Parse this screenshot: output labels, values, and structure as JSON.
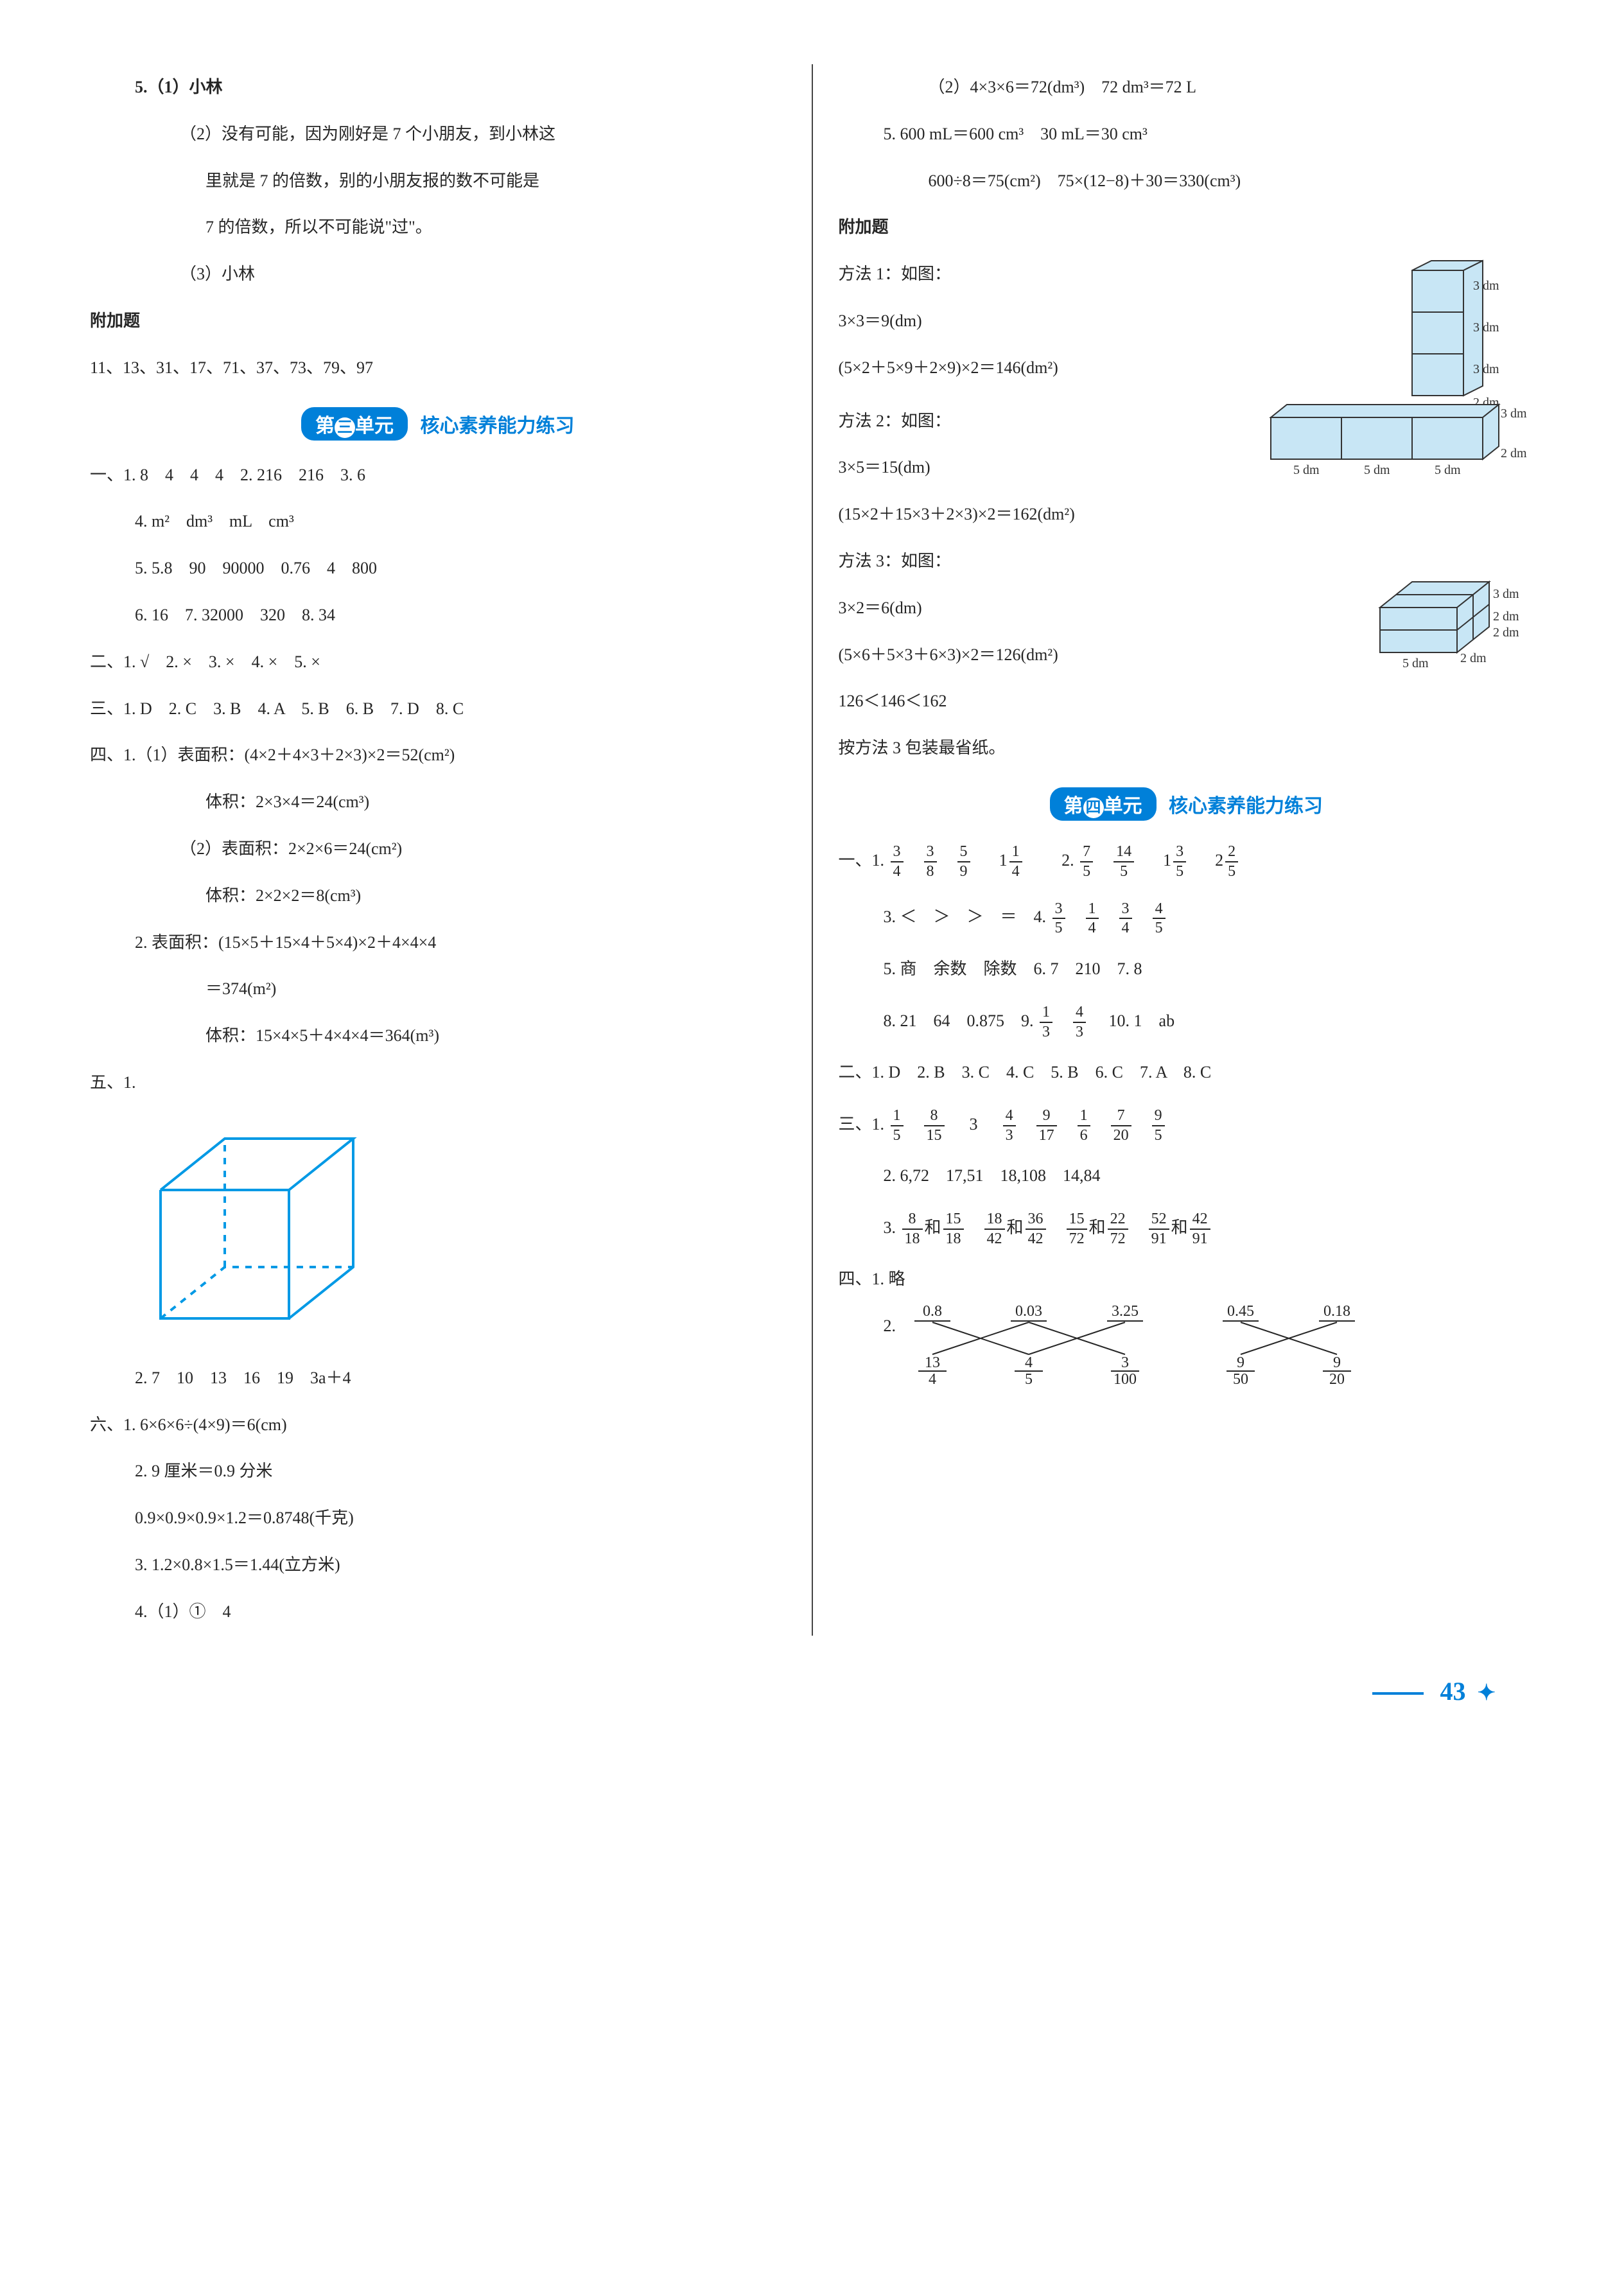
{
  "page_number": "43",
  "left": {
    "q5_1": "5.（1）小林",
    "q5_2a": "（2）没有可能，因为刚好是 7 个小朋友，到小林这",
    "q5_2b": "里就是 7 的倍数，别的小朋友报的数不可能是",
    "q5_2c": "7 的倍数，所以不可能说\"过\"。",
    "q5_3": "（3）小林",
    "extra_title": "附加题",
    "extra_nums": "11、13、31、17、71、37、73、79、97",
    "unit3_badge_pre": "第",
    "unit3_badge_char": "三",
    "unit3_badge_post": "单元",
    "unit3_title": "核心素养能力练习",
    "s1_1": "一、1. 8　4　4　4　2. 216　216　3. 6",
    "s1_4": "4. m²　dm³　mL　cm³",
    "s1_5": "5. 5.8　90　90000　0.76　4　800",
    "s1_6": "6. 16　7. 32000　320　8. 34",
    "s2": "二、1. √　2. ×　3. ×　4. ×　5. ×",
    "s3": "三、1. D　2. C　3. B　4. A　5. B　6. B　7. D　8. C",
    "s4_1a": "四、1.（1）表面积：(4×2＋4×3＋2×3)×2＝52(cm²)",
    "s4_1b": "体积：2×3×4＝24(cm³)",
    "s4_2a": "（2）表面积：2×2×6＝24(cm²)",
    "s4_2b": "体积：2×2×2＝8(cm³)",
    "s4_3a": "2. 表面积：(15×5＋15×4＋5×4)×2＋4×4×4",
    "s4_3b": "＝374(m²)",
    "s4_3c": "体积：15×4×5＋4×4×4＝364(m³)",
    "s5_label": "五、1.",
    "s5_2": "2. 7　10　13　16　19　3a＋4",
    "s6_1": "六、1. 6×6×6÷(4×9)＝6(cm)",
    "s6_2a": "2. 9 厘米＝0.9 分米",
    "s6_2b": "0.9×0.9×0.9×1.2＝0.8748(千克)",
    "s6_3": "3. 1.2×0.8×1.5＝1.44(立方米)",
    "s6_4": "4.（1）①　4"
  },
  "right": {
    "r1": "（2）4×3×6＝72(dm³)　72 dm³＝72 L",
    "r2": "5. 600 mL＝600 cm³　30 mL＝30 cm³",
    "r3": "600÷8＝75(cm²)　75×(12−8)＋30＝330(cm³)",
    "extra_title": "附加题",
    "m1_a": "方法 1：如图：",
    "m1_b": "3×3＝9(dm)",
    "m1_c": "(5×2＋5×9＋2×9)×2＝146(dm²)",
    "m2_a": "方法 2：如图：",
    "m2_b": "3×5＝15(dm)",
    "m2_c": "(15×2＋15×3＋2×3)×2＝162(dm²)",
    "m3_a": "方法 3：如图：",
    "m3_b": "3×2＝6(dm)",
    "m3_c": "(5×6＋5×3＋6×3)×2＝126(dm²)",
    "m3_d": "126＜146＜162",
    "m3_e": "按方法 3 包装最省纸。",
    "unit4_badge_pre": "第",
    "unit4_badge_char": "四",
    "unit4_badge_post": "单元",
    "unit4_title": "核心素养能力练习",
    "u4_1_1_pre": "一、1. ",
    "u4_1_2_pre": "　2. ",
    "u4_1_3": "3. ＜　＞　＞　＝　4. ",
    "u4_1_5": "5. 商　余数　除数　6. 7　210　7. 8",
    "u4_1_8": "8. 21　64　0.875　9. ",
    "u4_1_10": "　10. 1　ab",
    "u4_2": "二、1. D　2. B　3. C　4. C　5. B　6. C　7. A　8. C",
    "u4_3_1_pre": "三、1. ",
    "u4_3_2": "2. 6,72　17,51　18,108　14,84",
    "u4_3_3_pre": "3. ",
    "u4_4_1": "四、1. 略",
    "u4_4_2": "2.",
    "cross_top": [
      "0.8",
      "0.03",
      "3.25",
      "0.45",
      "0.18"
    ],
    "cross_bot": [
      [
        "13",
        "4"
      ],
      [
        "4",
        "5"
      ],
      [
        "3",
        "100"
      ],
      [
        "9",
        "50"
      ],
      [
        "9",
        "20"
      ]
    ],
    "he": "和"
  },
  "fracs": {
    "a": [
      [
        "3",
        "4"
      ],
      [
        "3",
        "8"
      ],
      [
        "5",
        "9"
      ],
      [
        "1",
        "4"
      ]
    ],
    "b": [
      [
        "7",
        "5"
      ],
      [
        "14",
        "5"
      ],
      [
        "3",
        "5"
      ],
      [
        "2",
        "5"
      ]
    ],
    "b_int": [
      "",
      "",
      "1",
      "2"
    ],
    "a_int": [
      "",
      "",
      "",
      "1"
    ],
    "c": [
      [
        "3",
        "5"
      ],
      [
        "1",
        "4"
      ],
      [
        "3",
        "4"
      ],
      [
        "4",
        "5"
      ]
    ],
    "d": [
      [
        "1",
        "3"
      ],
      [
        "4",
        "3"
      ]
    ],
    "e": [
      [
        "1",
        "5"
      ],
      [
        "8",
        "15"
      ],
      "3",
      [
        "4",
        "3"
      ],
      [
        "9",
        "17"
      ],
      [
        "1",
        "6"
      ],
      [
        "7",
        "20"
      ],
      [
        "9",
        "5"
      ]
    ],
    "f": [
      [
        "8",
        "18"
      ],
      [
        "15",
        "18"
      ],
      [
        "18",
        "42"
      ],
      [
        "36",
        "42"
      ],
      [
        "15",
        "72"
      ],
      [
        "22",
        "72"
      ],
      [
        "52",
        "91"
      ],
      [
        "42",
        "91"
      ]
    ]
  },
  "svg": {
    "cube_stroke": "#0099e5",
    "box_fill": "#c8e6f5",
    "box_stroke": "#333333",
    "label_color": "#333333"
  }
}
